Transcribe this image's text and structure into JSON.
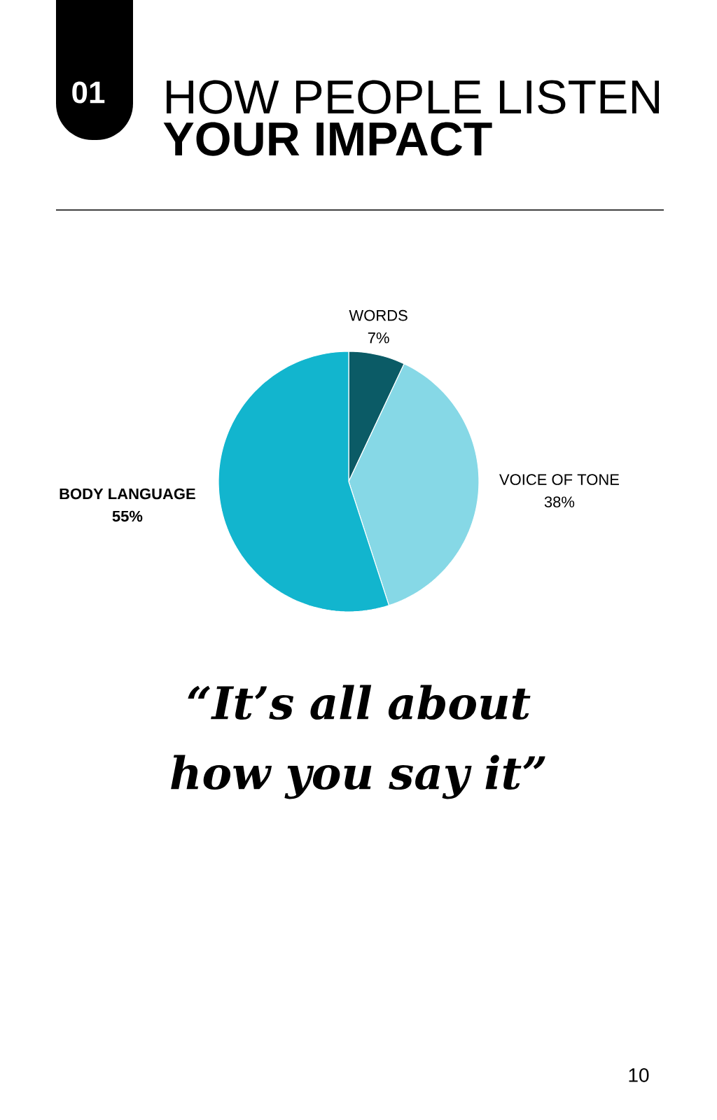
{
  "chart_data": {
    "type": "pie",
    "title": "HOW PEOPLE LISTEN",
    "subtitle": "YOUR IMPACT",
    "categories": [
      "WORDS",
      "VOICE OF TONE",
      "BODY LANGUAGE"
    ],
    "values": [
      7,
      38,
      55
    ],
    "value_labels": [
      "7%",
      "38%",
      "55%"
    ],
    "colors": [
      "#0b5b66",
      "#86d8e6",
      "#12b5ce"
    ],
    "annotations": [
      "01",
      "“It’s all about how you say it”",
      "10"
    ]
  }
}
